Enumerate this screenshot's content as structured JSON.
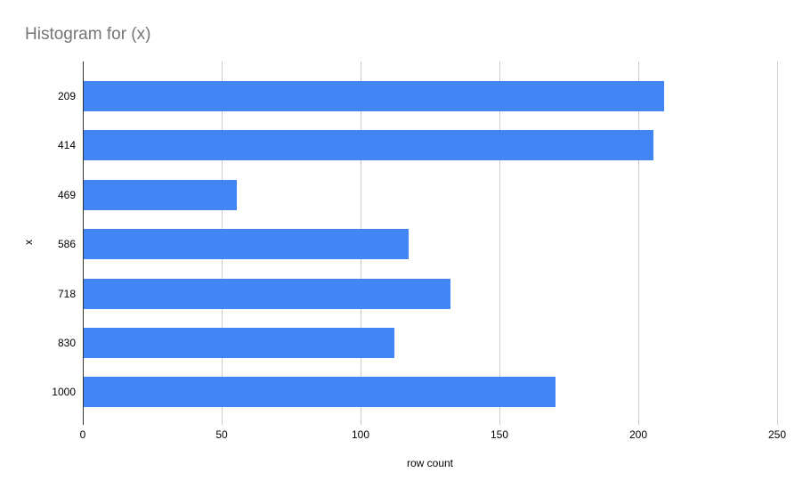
{
  "chart_data": {
    "type": "bar",
    "orientation": "horizontal",
    "title": "Histogram for (x)",
    "categories": [
      "209",
      "414",
      "469",
      "586",
      "718",
      "830",
      "1000"
    ],
    "values": [
      209,
      205,
      55,
      117,
      132,
      112,
      170
    ],
    "xlabel": "row count",
    "ylabel": "x",
    "xlim": [
      0,
      250
    ],
    "xticks": [
      0,
      50,
      100,
      150,
      200,
      250
    ],
    "xtick_labels": [
      "0",
      "50",
      "100",
      "150",
      "200",
      "250"
    ],
    "grid": "vertical",
    "legend": "none",
    "colors": {
      "bar": "#4285f4",
      "title": "#757575",
      "axis_line": "#333333",
      "gridline": "#cccccc",
      "tick_text": "#000000"
    }
  }
}
